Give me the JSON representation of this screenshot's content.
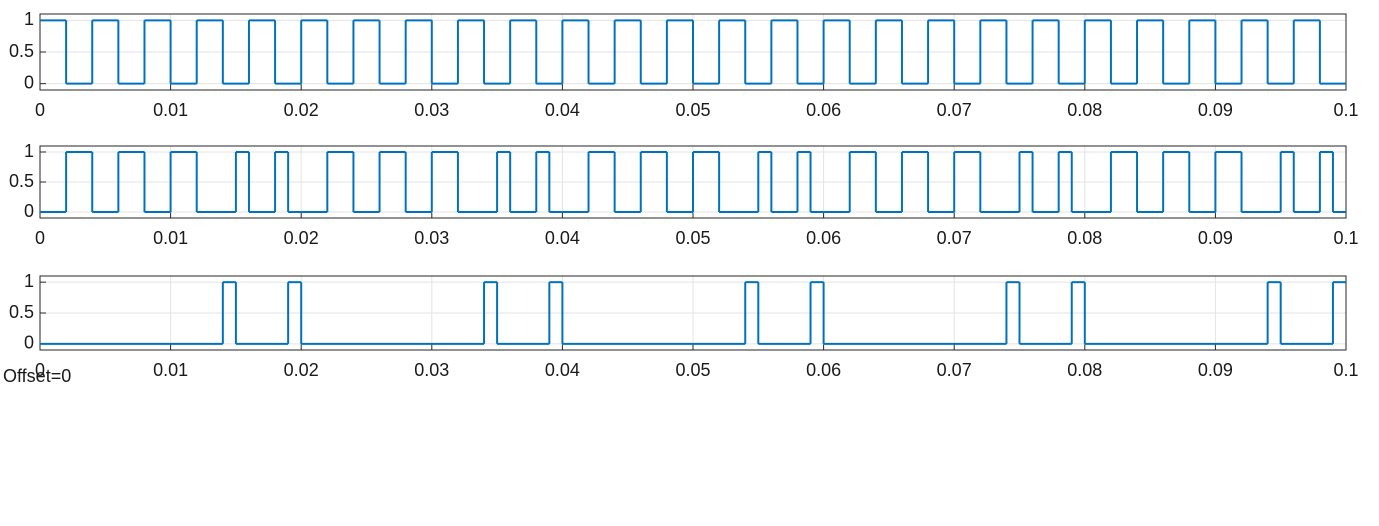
{
  "chart_data": [
    {
      "type": "step",
      "color": "#0072bd",
      "grid": true,
      "xlim": [
        0,
        0.1
      ],
      "ylim": [
        -0.1,
        1.1
      ],
      "xticks": [
        0,
        0.01,
        0.02,
        0.03,
        0.04,
        0.05,
        0.06,
        0.07,
        0.08,
        0.09,
        0.1
      ],
      "yticks": [
        0,
        0.5,
        1
      ],
      "x": [
        0,
        0.002,
        0.004,
        0.006,
        0.008,
        0.01,
        0.012,
        0.014,
        0.016,
        0.018,
        0.02,
        0.022,
        0.024,
        0.026,
        0.028,
        0.03,
        0.032,
        0.034,
        0.036,
        0.038,
        0.04,
        0.042,
        0.044,
        0.046,
        0.048,
        0.05,
        0.052,
        0.054,
        0.056,
        0.058,
        0.06,
        0.062,
        0.064,
        0.066,
        0.068,
        0.07,
        0.072,
        0.074,
        0.076,
        0.078,
        0.08,
        0.082,
        0.084,
        0.086,
        0.088,
        0.09,
        0.092,
        0.094,
        0.096,
        0.098
      ],
      "values": [
        1,
        0,
        1,
        0,
        1,
        0,
        1,
        0,
        1,
        0,
        1,
        0,
        1,
        0,
        1,
        0,
        1,
        0,
        1,
        0,
        1,
        0,
        1,
        0,
        1,
        0,
        1,
        0,
        1,
        0,
        1,
        0,
        1,
        0,
        1,
        0,
        1,
        0,
        1,
        0,
        1,
        0,
        1,
        0,
        1,
        0,
        1,
        0,
        1,
        0
      ]
    },
    {
      "type": "step",
      "color": "#0072bd",
      "grid": true,
      "xlim": [
        0,
        0.1
      ],
      "ylim": [
        -0.1,
        1.1
      ],
      "xticks": [
        0,
        0.01,
        0.02,
        0.03,
        0.04,
        0.05,
        0.06,
        0.07,
        0.08,
        0.09,
        0.1
      ],
      "yticks": [
        0,
        0.5,
        1
      ],
      "x": [
        0,
        0.002,
        0.004,
        0.006,
        0.008,
        0.01,
        0.012,
        0.015,
        0.016,
        0.018,
        0.019,
        0.02,
        0.022,
        0.024,
        0.026,
        0.028,
        0.03,
        0.032,
        0.035,
        0.036,
        0.038,
        0.039,
        0.04,
        0.042,
        0.044,
        0.046,
        0.048,
        0.05,
        0.052,
        0.055,
        0.056,
        0.058,
        0.059,
        0.06,
        0.062,
        0.064,
        0.066,
        0.068,
        0.07,
        0.072,
        0.075,
        0.076,
        0.078,
        0.079,
        0.08,
        0.082,
        0.084,
        0.086,
        0.088,
        0.09,
        0.092,
        0.095,
        0.096,
        0.098,
        0.099
      ],
      "values": [
        0,
        1,
        0,
        1,
        0,
        1,
        0,
        1,
        0,
        1,
        0,
        0,
        1,
        0,
        1,
        0,
        1,
        0,
        1,
        0,
        1,
        0,
        0,
        1,
        0,
        1,
        0,
        1,
        0,
        1,
        0,
        1,
        0,
        0,
        1,
        0,
        1,
        0,
        1,
        0,
        1,
        0,
        1,
        0,
        0,
        1,
        0,
        1,
        0,
        1,
        0,
        1,
        0,
        1,
        0
      ]
    },
    {
      "type": "step",
      "color": "#0072bd",
      "grid": true,
      "xlim": [
        0,
        0.1
      ],
      "ylim": [
        -0.1,
        1.1
      ],
      "xticks": [
        0,
        0.01,
        0.02,
        0.03,
        0.04,
        0.05,
        0.06,
        0.07,
        0.08,
        0.09,
        0.1
      ],
      "yticks": [
        0,
        0.5,
        1
      ],
      "x": [
        0,
        0.014,
        0.015,
        0.019,
        0.02,
        0.034,
        0.035,
        0.039,
        0.04,
        0.054,
        0.055,
        0.059,
        0.06,
        0.074,
        0.075,
        0.079,
        0.08,
        0.094,
        0.095,
        0.099
      ],
      "values": [
        0,
        1,
        0,
        1,
        0,
        1,
        0,
        1,
        0,
        1,
        0,
        1,
        0,
        1,
        0,
        1,
        0,
        1,
        0,
        1
      ]
    }
  ],
  "annotation": "Offset=0"
}
